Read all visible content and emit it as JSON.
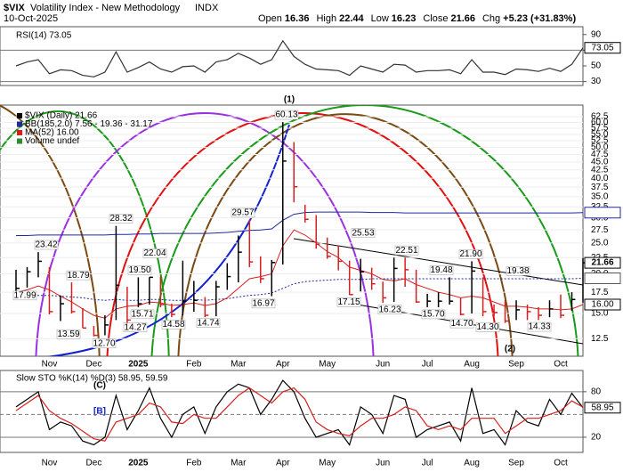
{
  "header": {
    "symbol": "$VIX",
    "name": "Volatility Index - New Methodology",
    "exchange": "INDX",
    "date": "10-Oct-2025",
    "quote": [
      {
        "label": "Open",
        "value": 16.36
      },
      {
        "label": "High",
        "value": 22.44
      },
      {
        "label": "Low",
        "value": 16.23
      },
      {
        "label": "Close",
        "value": 21.66
      },
      {
        "label": "Chg",
        "value": "+5.23 (+31.83%)"
      }
    ]
  },
  "chart_data": [
    {
      "type": "line",
      "title": "RSI(14) 73.05",
      "ylim": [
        25,
        100
      ],
      "yticks": [
        90,
        70,
        50,
        30
      ],
      "ref_lines": [
        70,
        30
      ],
      "series": [
        {
          "color": "#333333",
          "values": [
            50,
            55,
            58,
            40,
            45,
            44,
            38,
            36,
            42,
            68,
            42,
            48,
            55,
            46,
            42,
            49,
            50,
            42,
            55,
            58,
            66,
            60,
            52,
            58,
            82,
            62,
            52,
            46,
            45,
            44,
            38,
            50,
            46,
            42,
            52,
            51,
            42,
            44,
            44,
            45,
            40,
            58,
            42,
            42,
            39,
            46,
            45,
            43,
            47,
            43,
            52,
            73.05
          ]
        }
      ]
    },
    {
      "type": "candlestick",
      "log_scale": true,
      "ylim": [
        11,
        68
      ],
      "yticks": [
        62.5,
        {
          "value": 60,
          "label": "60.0"
        },
        57.5,
        {
          "value": 55,
          "label": "55.0"
        },
        52.5,
        {
          "value": 50,
          "label": "50.0"
        },
        47.5,
        {
          "value": 45,
          "label": "45.0"
        },
        42.5,
        {
          "value": 40,
          "label": "40.0"
        },
        37.5,
        {
          "value": 35,
          "label": "35.0"
        },
        32.5,
        {
          "value": 30,
          "label": "30.0"
        },
        27.5,
        {
          "value": 25,
          "label": "25.0"
        },
        22.5,
        {
          "value": 20,
          "label": "20.0"
        },
        17.5,
        {
          "value": 15,
          "label": "15.0"
        },
        12.5
      ],
      "legend": [
        {
          "text": "$VIX (Daily) 21.66",
          "color": "#000000"
        },
        {
          "text": "BB(185,2.0) 7.56 - 19.36 - 31.17",
          "color": "#1f2a9c"
        },
        {
          "text": "MA(52) 16.00",
          "color": "#d62020"
        },
        {
          "text": "Volume undef",
          "color": "#2e8b2e"
        }
      ],
      "categories": [
        null,
        null,
        null,
        "Nov",
        null,
        null,
        null,
        "Dec",
        null,
        null,
        null,
        "2025",
        null,
        null,
        null,
        null,
        "Feb",
        null,
        null,
        null,
        "Mar",
        null,
        null,
        null,
        "Apr",
        null,
        null,
        null,
        "May",
        null,
        null,
        null,
        null,
        "Jun",
        null,
        null,
        null,
        "Jul",
        null,
        null,
        null,
        "Aug",
        null,
        null,
        null,
        "Sep",
        null,
        null,
        null,
        "Oct",
        null,
        null
      ],
      "close": [
        18.0,
        20.3,
        21.9,
        15.2,
        16.1,
        15.2,
        13.5,
        12.8,
        13.8,
        18.4,
        14.3,
        16.1,
        19.5,
        16.0,
        14.9,
        16.4,
        16.5,
        14.8,
        18.2,
        19.6,
        23.4,
        21.8,
        19.3,
        21.7,
        45.3,
        37.6,
        29.7,
        24.8,
        22.7,
        21.9,
        17.2,
        20.3,
        18.6,
        16.8,
        20.8,
        20.6,
        16.3,
        16.4,
        16.4,
        16.4,
        14.9,
        20.4,
        15.2,
        15.1,
        14.2,
        15.4,
        15.2,
        14.8,
        15.5,
        14.8,
        16.6,
        21.66
      ],
      "high": [
        20.6,
        21.0,
        23.4,
        21.0,
        17.1,
        18.8,
        15.6,
        13.7,
        14.8,
        28.3,
        18.2,
        19.5,
        19.5,
        19.6,
        16.1,
        22.0,
        19.0,
        16.9,
        19.0,
        21.6,
        26.4,
        29.6,
        22.7,
        22.1,
        60.1,
        52.0,
        33.0,
        30.6,
        26.0,
        24.5,
        22.0,
        22.3,
        20.9,
        18.9,
        22.5,
        22.5,
        20.6,
        17.3,
        17.5,
        19.5,
        16.8,
        21.9,
        19.5,
        16.0,
        16.5,
        16.5,
        16.0,
        15.7,
        16.5,
        17.2,
        17.5,
        22.44
      ],
      "low": [
        17.4,
        18.1,
        19.5,
        14.9,
        14.2,
        15.0,
        13.5,
        12.7,
        12.8,
        14.3,
        14.0,
        15.7,
        16.0,
        15.7,
        14.6,
        14.8,
        15.2,
        14.6,
        14.7,
        17.8,
        18.8,
        21.0,
        18.7,
        17.0,
        21.4,
        33.6,
        29.0,
        24.0,
        22.3,
        20.5,
        17.15,
        17.6,
        17.8,
        16.2,
        16.3,
        18.2,
        16.2,
        15.7,
        15.7,
        16.0,
        14.8,
        15.0,
        14.7,
        14.7,
        14.0,
        14.3,
        14.3,
        14.3,
        14.6,
        14.5,
        15.3,
        16.23
      ],
      "lines": [
        {
          "color": "#1f2a9c",
          "dash": false,
          "values": [
            26.4,
            26.4,
            26.5,
            26.5,
            26.5,
            26.5,
            26.5,
            26.5,
            26.5,
            26.6,
            26.6,
            26.7,
            26.7,
            26.8,
            26.8,
            26.8,
            26.8,
            26.8,
            26.9,
            27,
            27.2,
            27.4,
            27.5,
            27.7,
            29.5,
            30.8,
            31.2,
            31.3,
            31.3,
            31.3,
            31.3,
            31.3,
            31.2,
            31.2,
            31.2,
            31.1,
            31.1,
            31.1,
            31.1,
            31.1,
            31.1,
            31.1,
            31.1,
            31.1,
            31.1,
            31.1,
            31.1,
            31.1,
            31.1,
            31.1,
            31.1,
            31.17
          ]
        },
        {
          "color": "#1f2a9c",
          "dash": true,
          "values": [
            17.0,
            17.0,
            17.1,
            17.1,
            17.0,
            16.9,
            16.8,
            16.6,
            16.5,
            16.6,
            16.5,
            16.5,
            16.6,
            16.6,
            16.5,
            16.5,
            16.6,
            16.5,
            16.6,
            16.7,
            16.9,
            17.1,
            17.2,
            17.4,
            18.0,
            18.6,
            18.9,
            19.0,
            19.1,
            19.2,
            19.2,
            19.2,
            19.3,
            19.3,
            19.3,
            19.3,
            19.3,
            19.3,
            19.3,
            19.3,
            19.3,
            19.3,
            19.3,
            19.3,
            19.3,
            19.3,
            19.3,
            19.3,
            19.3,
            19.3,
            19.3,
            19.36
          ]
        },
        {
          "color": "#d62020",
          "dash": false,
          "values": [
            17.5,
            17.8,
            18.3,
            17.8,
            17.0,
            16.3,
            15.5,
            14.8,
            14.5,
            15.5,
            15.8,
            15.9,
            16.3,
            16.2,
            15.9,
            16.0,
            16.2,
            15.9,
            16.1,
            16.8,
            18.0,
            19.3,
            19.6,
            20.0,
            24.5,
            27.5,
            26.5,
            25.0,
            23.5,
            22.5,
            21.0,
            20.5,
            20.0,
            19.2,
            19.0,
            19.3,
            18.5,
            18.0,
            17.5,
            17.2,
            16.8,
            17.0,
            16.8,
            16.3,
            15.8,
            15.8,
            15.7,
            15.5,
            15.5,
            15.4,
            15.5,
            16.0
          ]
        }
      ],
      "tags": [
        {
          "value": 31.17,
          "color": "#1f2a9c"
        },
        {
          "value": 19.36,
          "color": "#555555"
        },
        {
          "value": 16,
          "label": "16.00",
          "color": "#000000"
        }
      ],
      "price_labels": [
        {
          "value": 23.42,
          "label": "23.42"
        },
        {
          "value": 18.79,
          "label": "18.79"
        },
        {
          "value": 17.99,
          "label": "17.99"
        },
        {
          "value": 13.59,
          "label": "13.59"
        },
        {
          "value": 12.7,
          "label": "12.70"
        },
        {
          "value": 14.27,
          "label": "14.27"
        },
        {
          "value": 15.71,
          "label": "15.71"
        },
        {
          "value": 28.32,
          "label": "28.32"
        },
        {
          "value": 19.5,
          "label": "19.50"
        },
        {
          "value": 22.04,
          "label": "22.04"
        },
        {
          "value": 14.58,
          "label": "14.58"
        },
        {
          "value": 14.74,
          "label": "14.74"
        },
        {
          "value": 29.57,
          "label": "29.57"
        },
        {
          "value": 16.97,
          "label": "16.97"
        },
        {
          "value": 60.13,
          "label": "60.13"
        },
        {
          "value": 17.15,
          "label": "17.15"
        },
        {
          "value": 25.53,
          "label": "25.53"
        },
        {
          "value": 16.23,
          "label": "16.23"
        },
        {
          "value": 22.51,
          "label": "22.51"
        },
        {
          "value": 15.7,
          "label": "15.70"
        },
        {
          "value": 19.48,
          "label": "19.48"
        },
        {
          "value": 14.7,
          "label": "14.70"
        },
        {
          "value": 21.9,
          "label": "21.90"
        },
        {
          "value": 14.3,
          "label": "14.30"
        },
        {
          "value": 19.38,
          "label": "19.38"
        },
        {
          "value": 14.33,
          "label": "14.33"
        }
      ],
      "wave_labels": [
        "(1)",
        "(2)"
      ]
    },
    {
      "type": "line",
      "title": "Slow STO %K(14) %D(3) 58.95, 59.59",
      "ylim": [
        0,
        108
      ],
      "yticks": [
        80,
        20
      ],
      "ref_lines": [
        80,
        50,
        20
      ],
      "categories": [
        null,
        null,
        null,
        "Nov",
        null,
        null,
        null,
        "Dec",
        null,
        null,
        null,
        "2025",
        null,
        null,
        null,
        null,
        "Feb",
        null,
        null,
        null,
        "Mar",
        null,
        null,
        null,
        "Apr",
        null,
        null,
        null,
        "May",
        null,
        null,
        null,
        null,
        "Jun",
        null,
        null,
        null,
        "Jul",
        null,
        null,
        null,
        "Aug",
        null,
        null,
        null,
        "Sep",
        null,
        null,
        null,
        "Oct",
        null,
        null
      ],
      "annotations": [
        "(C)",
        "[B]"
      ],
      "series": [
        {
          "color": "#000000",
          "values": [
            60,
            70,
            80,
            30,
            40,
            35,
            15,
            10,
            20,
            75,
            30,
            55,
            85,
            45,
            20,
            50,
            60,
            25,
            60,
            80,
            90,
            85,
            50,
            70,
            95,
            80,
            45,
            20,
            25,
            30,
            10,
            60,
            50,
            25,
            75,
            70,
            20,
            30,
            35,
            40,
            15,
            85,
            25,
            30,
            10,
            55,
            40,
            35,
            70,
            50,
            78,
            58.95
          ]
        },
        {
          "color": "#d62020",
          "values": [
            55,
            65,
            75,
            55,
            45,
            38,
            28,
            18,
            15,
            40,
            45,
            50,
            65,
            60,
            40,
            38,
            50,
            45,
            45,
            60,
            75,
            85,
            75,
            65,
            80,
            85,
            70,
            40,
            30,
            25,
            22,
            35,
            45,
            45,
            50,
            60,
            55,
            35,
            30,
            35,
            30,
            45,
            45,
            45,
            25,
            35,
            45,
            45,
            50,
            55,
            68,
            59.59
          ]
        }
      ]
    }
  ]
}
